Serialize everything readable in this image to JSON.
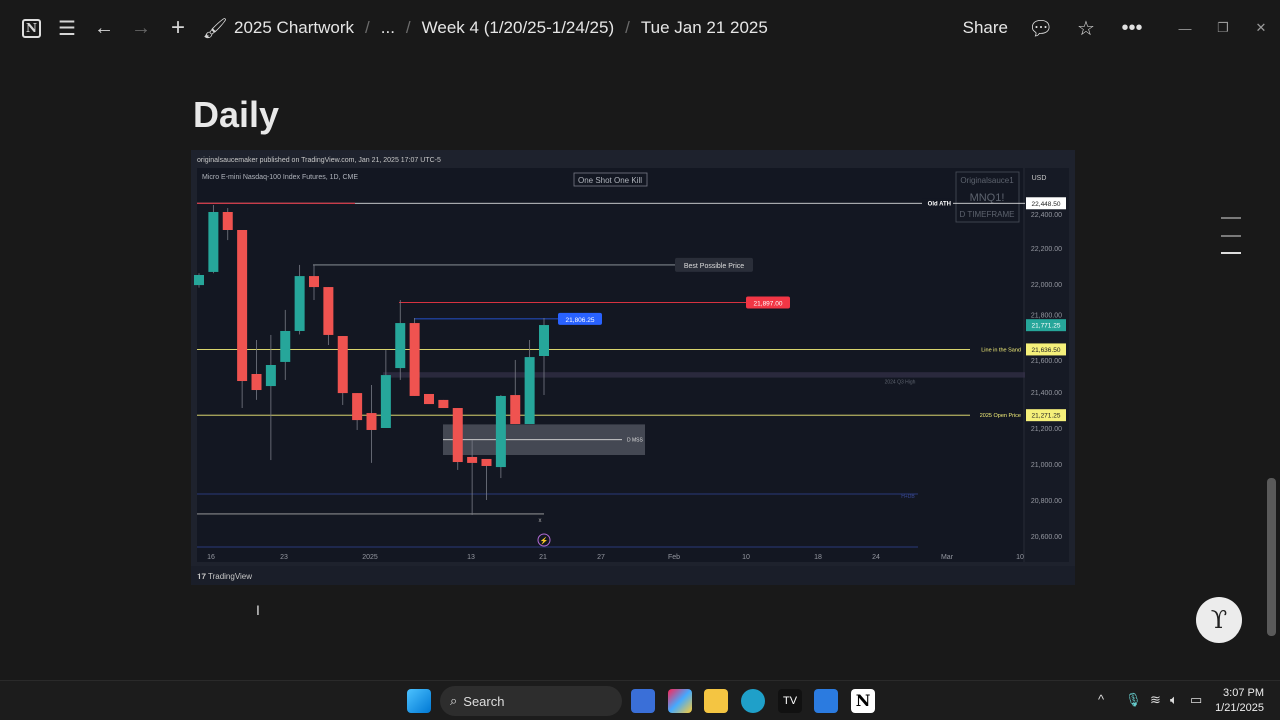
{
  "topbar": {
    "breadcrumbs": [
      "2025 Chartwork",
      "...",
      "Week 4 (1/20/25-1/24/25)",
      "Tue Jan 21 2025"
    ],
    "share": "Share",
    "icons": [
      "notion-icon",
      "menu-icon",
      "back-arrow-icon",
      "forward-arrow-icon",
      "plus-icon",
      "paintbrush-emoji-icon",
      "comment-icon",
      "star-icon",
      "more-icon",
      "minimize-icon",
      "restore-icon",
      "close-icon"
    ]
  },
  "page": {
    "title": "Daily"
  },
  "chart_image": {
    "publisher": "originalsaucemaker published on TradingView.com, Jan 21, 2025 17:07 UTC-5",
    "symbol": "Micro E-mini Nasdaq-100 Index Futures, 1D, CME",
    "note": "One Shot One Kill",
    "watermark": [
      "Originalsauce1",
      "MNQ1!",
      "D TIMEFRAME"
    ],
    "currency": "USD",
    "brand": "TradingView",
    "colors": {
      "up": "#26a69a",
      "down": "#ef5350",
      "bg": "#131722"
    },
    "chart_data": {
      "type": "candlestick",
      "x_ticks": [
        "16",
        "23",
        "2025",
        "13",
        "21",
        "27",
        "Feb",
        "10",
        "18",
        "24",
        "Mar",
        "10"
      ],
      "y_ticks": [
        "22,400.00",
        "22,200.00",
        "22,000.00",
        "21,800.00",
        "21,600.00",
        "21,400.00",
        "21,200.00",
        "21,000.00",
        "20,800.00",
        "20,600.00"
      ],
      "candles": [
        [
          21994,
          22060,
          21980,
          22050
        ],
        [
          22067,
          22439,
          22060,
          22400
        ],
        [
          22400,
          22422,
          22244,
          22300
        ],
        [
          22300,
          22300,
          21311,
          21461
        ],
        [
          21500,
          21689,
          21356,
          21411
        ],
        [
          21433,
          21717,
          21022,
          21550
        ],
        [
          21567,
          21856,
          21467,
          21739
        ],
        [
          21739,
          22106,
          21720,
          22044
        ],
        [
          22044,
          22106,
          21911,
          21983
        ],
        [
          21983,
          21983,
          21661,
          21717
        ],
        [
          21711,
          21711,
          21328,
          21394
        ],
        [
          21394,
          21394,
          21189,
          21244
        ],
        [
          21283,
          21439,
          21006,
          21189
        ],
        [
          21200,
          21633,
          21200,
          21494
        ],
        [
          21533,
          21911,
          21467,
          21783
        ],
        [
          21783,
          21811,
          21378,
          21378
        ],
        [
          21389,
          21389,
          21333,
          21333
        ],
        [
          21356,
          21356,
          21311,
          21311
        ],
        [
          21311,
          21311,
          20967,
          21011
        ],
        [
          21039,
          21133,
          20717,
          21006
        ],
        [
          21028,
          21028,
          20800,
          20989
        ],
        [
          20983,
          21383,
          20922,
          21378
        ],
        [
          21383,
          21578,
          21222,
          21222
        ],
        [
          21222,
          21689,
          21222,
          21594
        ],
        [
          21600,
          21811,
          21383,
          21772
        ]
      ],
      "levels": [
        {
          "label": "Old ATH",
          "price": "22,448.50",
          "value": 22448.5,
          "color": "#ffffff"
        },
        {
          "label": "Best Possible Price",
          "value": 22106,
          "color": "#9aa0a6"
        },
        {
          "label": "",
          "price": "21,897.00",
          "value": 21897,
          "color": "#f23645"
        },
        {
          "label": "",
          "price": "21,806.25",
          "value": 21806.25,
          "color": "#2962ff"
        },
        {
          "label": "Line in the Sand",
          "price": "21,636.50",
          "value": 21636.5,
          "color": "#f5f07a"
        },
        {
          "label": "2025 Open Price",
          "price": "21,271.25",
          "value": 21271.25,
          "color": "#f5f07a"
        }
      ],
      "zones": [
        {
          "label": "2024 Q3 High",
          "from": 21480,
          "to": 21510
        },
        {
          "label": "D MSS",
          "from": 21050,
          "to": 21220
        }
      ],
      "current_price": "21,771.25",
      "low_line": {
        "label": "x",
        "value": 20717
      },
      "blue_line": {
        "label": "H+DB",
        "value": 20833
      }
    }
  },
  "taskbar": {
    "search": "Search",
    "time": "3:07 PM",
    "date": "1/21/2025"
  }
}
